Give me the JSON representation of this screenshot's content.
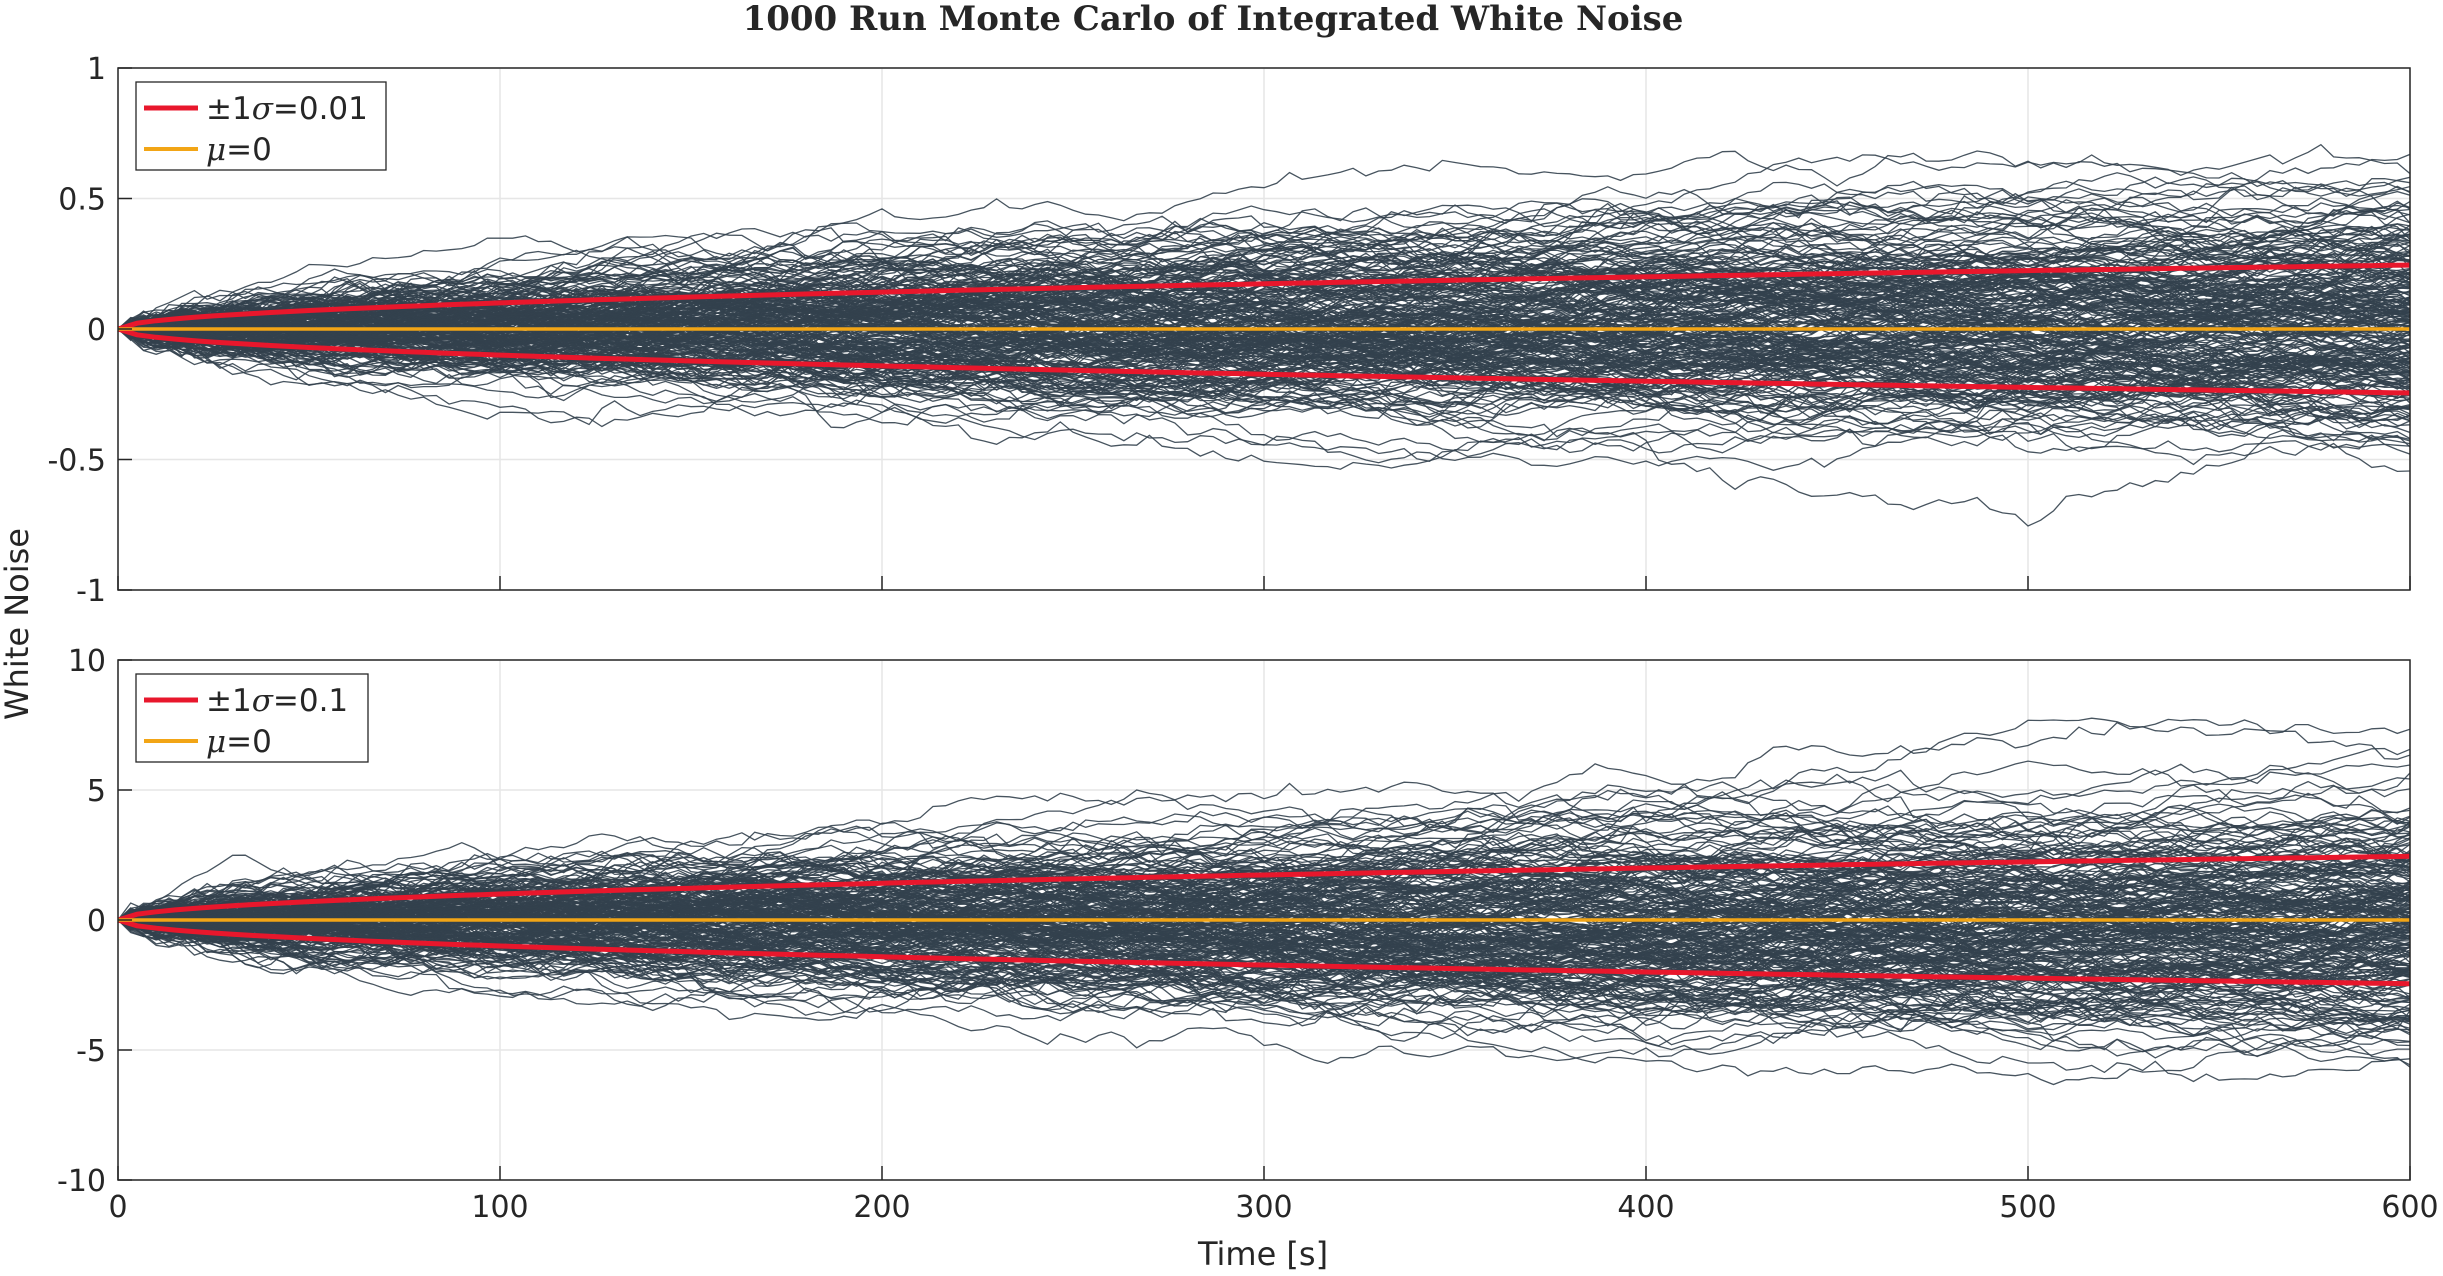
{
  "chart_data": {
    "title": "1000 Run Monte Carlo of Integrated White Noise",
    "xlabel": "Time [s]",
    "ylabel": "White Noise",
    "colors": {
      "runs": "#33414e",
      "sigma": "#e8172c",
      "mean": "#f2a516",
      "grid": "#e6e6e6",
      "axis": "#262626"
    },
    "subplots": [
      {
        "type": "line",
        "runs": 1000,
        "xlim": [
          0,
          600
        ],
        "ylim": [
          -1,
          1
        ],
        "xticks": [
          0,
          100,
          200,
          300,
          400,
          500,
          600
        ],
        "yticks": [
          -1,
          -0.5,
          0,
          0.5,
          1
        ],
        "ytick_labels": [
          "-1",
          "-0.5",
          "0",
          "0.5",
          "1"
        ],
        "grid": true,
        "legend": "top-left",
        "legend_entries": [
          {
            "prefix": "±1",
            "symbol": "σ",
            "suffix": "=0.01",
            "color_key": "sigma"
          },
          {
            "prefix": "",
            "symbol": "μ",
            "suffix": "=0",
            "color_key": "mean"
          }
        ],
        "sigma": 0.01,
        "mean": 0,
        "sigma_envelope": {
          "x": [
            0,
            100,
            200,
            300,
            400,
            500,
            600
          ],
          "upper": [
            0,
            0.1,
            0.141,
            0.173,
            0.2,
            0.224,
            0.245
          ],
          "lower": [
            0,
            -0.1,
            -0.141,
            -0.173,
            -0.2,
            -0.224,
            -0.245
          ]
        },
        "observed_range": {
          "max": 0.7,
          "min": -0.75
        }
      },
      {
        "type": "line",
        "runs": 1000,
        "xlim": [
          0,
          600
        ],
        "ylim": [
          -10,
          10
        ],
        "xticks": [
          0,
          100,
          200,
          300,
          400,
          500,
          600
        ],
        "yticks": [
          -10,
          -5,
          0,
          5,
          10
        ],
        "ytick_labels": [
          "-10",
          "-5",
          "0",
          "5",
          "10"
        ],
        "xtick_labels": [
          "0",
          "100",
          "200",
          "300",
          "400",
          "500",
          "600"
        ],
        "grid": true,
        "legend": "top-left",
        "legend_entries": [
          {
            "prefix": "±1",
            "symbol": "σ",
            "suffix": "=0.1",
            "color_key": "sigma"
          },
          {
            "prefix": "",
            "symbol": "μ",
            "suffix": "=0",
            "color_key": "mean"
          }
        ],
        "sigma": 0.1,
        "mean": 0,
        "sigma_envelope": {
          "x": [
            0,
            100,
            200,
            300,
            400,
            500,
            600
          ],
          "upper": [
            0,
            1.0,
            1.41,
            1.73,
            2.0,
            2.24,
            2.45
          ],
          "lower": [
            0,
            -1.0,
            -1.41,
            -1.73,
            -2.0,
            -2.24,
            -2.45
          ]
        },
        "observed_range": {
          "max": 8.4,
          "min": -7.5
        }
      }
    ]
  }
}
